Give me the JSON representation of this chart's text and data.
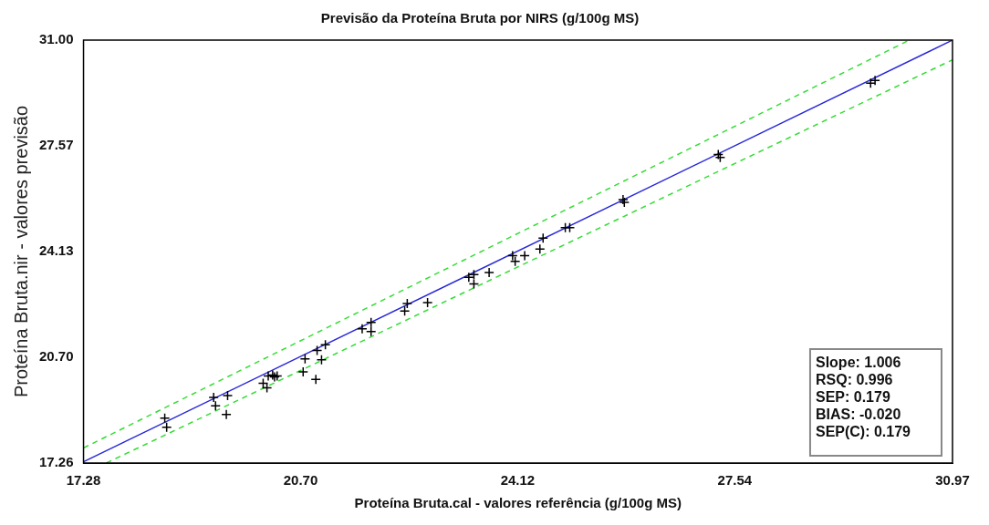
{
  "chart_data": {
    "type": "scatter",
    "title": "Previsão da Proteína Bruta por NIRS (g/100g MS)",
    "xlabel": "Proteína Bruta.cal - valores referência (g/100g MS)",
    "ylabel": "Proteína Bruta.nir - valores previsão",
    "x": [
      18.56,
      18.59,
      19.33,
      19.36,
      19.55,
      19.53,
      20.11,
      20.17,
      20.19,
      20.26,
      20.29,
      20.33,
      20.77,
      20.74,
      20.94,
      20.96,
      21.09,
      21.03,
      21.67,
      21.81,
      21.81,
      22.34,
      22.38,
      22.7,
      23.35,
      23.43,
      23.43,
      23.67,
      24.04,
      24.08,
      24.23,
      24.47,
      24.52,
      24.87,
      24.94,
      25.78,
      25.8,
      27.31,
      27.28,
      29.68,
      29.75
    ],
    "series": [
      {
        "marker": "cross",
        "color": "#000000",
        "values": [
          18.72,
          18.42,
          19.39,
          19.12,
          19.45,
          18.84,
          19.85,
          19.7,
          20.09,
          20.12,
          20.06,
          20.09,
          20.64,
          20.22,
          19.98,
          20.92,
          21.1,
          20.61,
          21.62,
          21.83,
          21.53,
          22.2,
          22.44,
          22.47,
          23.29,
          23.08,
          23.38,
          23.45,
          24.0,
          23.81,
          24.0,
          24.21,
          24.57,
          24.91,
          24.91,
          25.82,
          25.73,
          27.19,
          27.28,
          29.6,
          29.69
        ]
      },
      {
        "type": "line",
        "color": "#2828d8",
        "line_style": "solid",
        "x": [
          17.28,
          30.97
        ],
        "values": [
          17.3,
          31.0
        ]
      },
      {
        "type": "line",
        "color": "#33dd33",
        "line_style": "dashed",
        "x": [
          17.28,
          30.29
        ],
        "values": [
          17.75,
          31.0
        ]
      },
      {
        "type": "line",
        "color": "#33dd33",
        "line_style": "dashed",
        "x": [
          17.64,
          30.97
        ],
        "values": [
          17.26,
          30.36
        ]
      }
    ],
    "grid": false,
    "legend": false,
    "xlim": [
      17.28,
      30.97
    ],
    "xticks": [
      17.28,
      {
        "value": 20.7,
        "label": "20.70"
      },
      24.12,
      27.54,
      30.97
    ],
    "ylim": [
      17.26,
      31.0
    ],
    "yticks": [
      17.26,
      {
        "value": 20.7,
        "label": "20.70"
      },
      24.13,
      27.57,
      {
        "value": 31,
        "label": "31.00"
      }
    ],
    "annotations": [
      "Slope: 1.006",
      "RSQ: 0.996",
      "SEP: 0.179",
      "BIAS: -0.020",
      "SEP(C): 0.179"
    ]
  }
}
